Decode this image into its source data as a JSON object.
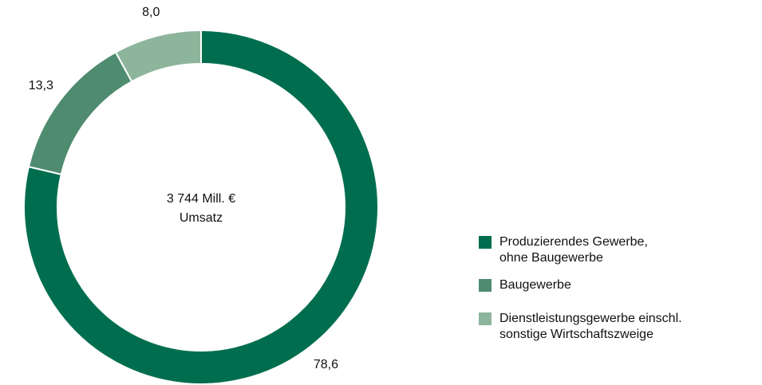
{
  "chart_data": {
    "type": "donut",
    "center_label": "3 744 Mill. €",
    "center_sublabel": "Umsatz",
    "categories": [
      "Produzierendes Gewerbe,\nohne Baugewerbe",
      "Baugewerbe",
      "Dienstleistungsgewerbe einschl.\nsonstige Wirtschaftszweige"
    ],
    "values": [
      78.6,
      13.3,
      8.0
    ],
    "value_labels": [
      "78,6",
      "13,3",
      "8,0"
    ],
    "colors": [
      "#006e4e",
      "#4f8c6f",
      "#8db59b"
    ],
    "legend": "right"
  }
}
